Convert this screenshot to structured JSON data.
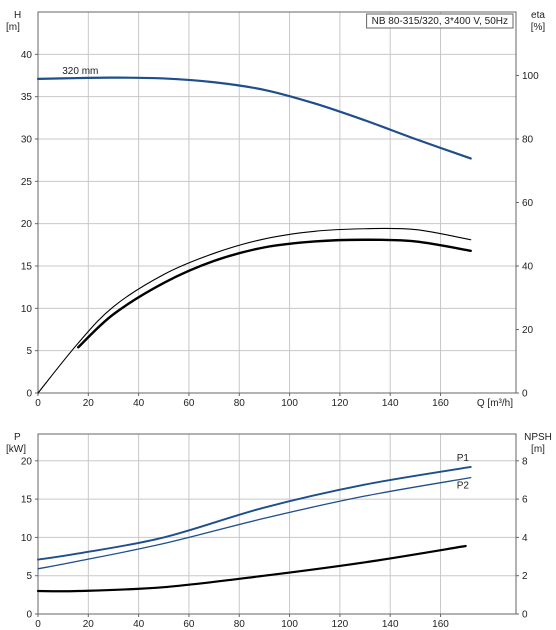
{
  "chart_data": [
    {
      "type": "line",
      "panel": "head-efficiency",
      "title": "NB 80-315/320, 3*400 V, 50Hz",
      "xlabel": "Q [m³/h]",
      "ylabel_left": [
        "H",
        "[m]"
      ],
      "ylabel_right": [
        "eta",
        "[%]"
      ],
      "xlim": [
        0,
        190
      ],
      "ylim_left": [
        0,
        45
      ],
      "ylim_right": [
        0,
        120
      ],
      "x_ticks": [
        0,
        20,
        40,
        60,
        80,
        100,
        120,
        140,
        160
      ],
      "y_ticks_left": [
        0,
        5,
        10,
        15,
        20,
        25,
        30,
        35,
        40
      ],
      "y_ticks_right": [
        0,
        20,
        40,
        60,
        80,
        100
      ],
      "grid": true,
      "series": [
        {
          "name": "320 mm",
          "axis": "left",
          "color": "#1f4e8c",
          "x": [
            0,
            16,
            30,
            50,
            70,
            90,
            110,
            130,
            150,
            172
          ],
          "y": [
            37.1,
            37.2,
            37.25,
            37.15,
            36.7,
            35.8,
            34.2,
            32.2,
            30.0,
            27.7
          ]
        },
        {
          "axis": "left",
          "color": "#000000",
          "weight": "thin",
          "x": [
            0,
            16,
            30,
            50,
            70,
            90,
            110,
            130,
            150,
            172
          ],
          "y": [
            0,
            5.9,
            10.2,
            14.0,
            16.5,
            18.2,
            19.1,
            19.4,
            19.3,
            18.1
          ]
        },
        {
          "axis": "left",
          "color": "#000000",
          "weight": "thick",
          "x": [
            16,
            30,
            50,
            70,
            90,
            110,
            130,
            150,
            172
          ],
          "y": [
            5.4,
            9.3,
            13.0,
            15.6,
            17.2,
            17.9,
            18.1,
            17.9,
            16.8
          ]
        }
      ]
    },
    {
      "type": "line",
      "panel": "power-npsh",
      "xlabel": "",
      "ylabel_left": [
        "P",
        "[kW]"
      ],
      "ylabel_right": [
        "NPSH",
        "[m]"
      ],
      "xlim": [
        0,
        190
      ],
      "ylim_left": [
        0,
        23.5
      ],
      "ylim_right": [
        0,
        9.4
      ],
      "x_ticks": [
        0,
        20,
        40,
        60,
        80,
        100,
        120,
        140,
        160
      ],
      "y_ticks_left": [
        0,
        5,
        10,
        15,
        20
      ],
      "y_ticks_right": [
        0,
        2,
        4,
        6,
        8
      ],
      "grid": true,
      "series": [
        {
          "name": "P1",
          "axis": "left",
          "color": "#1f4e8c",
          "x": [
            0,
            16,
            50,
            90,
            130,
            172
          ],
          "y": [
            7.1,
            7.9,
            10.0,
            13.9,
            16.9,
            19.2
          ]
        },
        {
          "name": "P2",
          "axis": "left",
          "color": "#1f4e8c",
          "x": [
            0,
            16,
            50,
            90,
            130,
            172
          ],
          "y": [
            5.9,
            6.9,
            9.2,
            12.5,
            15.4,
            17.8
          ]
        },
        {
          "axis": "right",
          "color": "#000000",
          "x": [
            0,
            16,
            50,
            90,
            130,
            170
          ],
          "y": [
            1.2,
            1.2,
            1.4,
            2.0,
            2.7,
            3.55
          ]
        }
      ]
    }
  ]
}
